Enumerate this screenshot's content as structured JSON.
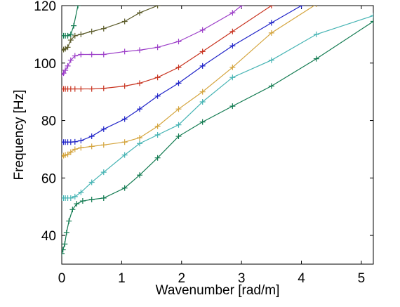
{
  "chart_data": {
    "type": "line",
    "title": "",
    "xlabel": "Wavenumber [rad/m]",
    "ylabel": "Frequency [Hz]",
    "xlim": [
      0,
      5.2
    ],
    "ylim": [
      30,
      120
    ],
    "xticks": [
      0,
      1,
      2,
      3,
      4,
      5
    ],
    "yticks": [
      40,
      60,
      80,
      100,
      120
    ],
    "grid": false,
    "legend": "none",
    "marker": "+",
    "series": [
      {
        "color": "#117a50",
        "points": [
          [
            0.0,
            33.7
          ],
          [
            0.02,
            35.0
          ],
          [
            0.05,
            37.0
          ],
          [
            0.08,
            41.0
          ],
          [
            0.12,
            45.0
          ],
          [
            0.18,
            49.0
          ],
          [
            0.25,
            51.0
          ],
          [
            0.35,
            52.0
          ],
          [
            0.5,
            52.5
          ],
          [
            0.7,
            53.0
          ],
          [
            1.05,
            56.5
          ],
          [
            1.3,
            61.0
          ],
          [
            1.6,
            67.0
          ],
          [
            1.95,
            74.5
          ],
          [
            2.35,
            79.5
          ],
          [
            2.85,
            85.0
          ],
          [
            3.5,
            92.0
          ],
          [
            4.25,
            101.5
          ],
          [
            5.2,
            114.5
          ]
        ]
      },
      {
        "color": "#46b4b4",
        "points": [
          [
            0.0,
            53.0
          ],
          [
            0.03,
            53.0
          ],
          [
            0.06,
            53.0
          ],
          [
            0.1,
            53.0
          ],
          [
            0.15,
            53.0
          ],
          [
            0.22,
            53.5
          ],
          [
            0.32,
            55.0
          ],
          [
            0.5,
            58.5
          ],
          [
            0.7,
            62.0
          ],
          [
            1.05,
            68.0
          ],
          [
            1.3,
            72.0
          ],
          [
            1.6,
            75.0
          ],
          [
            1.95,
            78.5
          ],
          [
            2.35,
            86.5
          ],
          [
            2.85,
            95.0
          ],
          [
            3.5,
            101.0
          ],
          [
            4.25,
            110.0
          ],
          [
            5.2,
            116.5
          ]
        ]
      },
      {
        "color": "#d4a43c",
        "points": [
          [
            0.0,
            67.5
          ],
          [
            0.03,
            67.8
          ],
          [
            0.06,
            68.0
          ],
          [
            0.1,
            68.2
          ],
          [
            0.15,
            69.0
          ],
          [
            0.22,
            70.0
          ],
          [
            0.32,
            70.5
          ],
          [
            0.5,
            71.0
          ],
          [
            0.7,
            71.5
          ],
          [
            1.05,
            72.5
          ],
          [
            1.3,
            74.0
          ],
          [
            1.6,
            78.0
          ],
          [
            1.95,
            84.0
          ],
          [
            2.35,
            90.0
          ],
          [
            2.85,
            98.5
          ],
          [
            3.5,
            110.5
          ],
          [
            4.25,
            120.5
          ]
        ]
      },
      {
        "color": "#1f23c8",
        "points": [
          [
            0.0,
            72.5
          ],
          [
            0.03,
            72.5
          ],
          [
            0.06,
            72.5
          ],
          [
            0.1,
            72.5
          ],
          [
            0.15,
            72.5
          ],
          [
            0.22,
            72.6
          ],
          [
            0.32,
            73.0
          ],
          [
            0.5,
            74.5
          ],
          [
            0.7,
            77.0
          ],
          [
            1.05,
            80.5
          ],
          [
            1.3,
            84.0
          ],
          [
            1.6,
            88.5
          ],
          [
            1.95,
            93.0
          ],
          [
            2.35,
            99.0
          ],
          [
            2.85,
            106.0
          ],
          [
            3.5,
            114.0
          ],
          [
            4.0,
            120.0
          ]
        ]
      },
      {
        "color": "#c8321e",
        "points": [
          [
            0.0,
            91.0
          ],
          [
            0.03,
            91.0
          ],
          [
            0.06,
            91.0
          ],
          [
            0.1,
            91.0
          ],
          [
            0.15,
            91.0
          ],
          [
            0.22,
            91.0
          ],
          [
            0.32,
            91.0
          ],
          [
            0.5,
            91.0
          ],
          [
            0.7,
            91.2
          ],
          [
            1.05,
            92.0
          ],
          [
            1.3,
            93.0
          ],
          [
            1.6,
            95.0
          ],
          [
            1.95,
            98.5
          ],
          [
            2.35,
            104.0
          ],
          [
            2.85,
            111.0
          ],
          [
            3.5,
            120.0
          ]
        ]
      },
      {
        "color": "#9b3cc8",
        "points": [
          [
            0.0,
            96.0
          ],
          [
            0.03,
            96.5
          ],
          [
            0.06,
            97.5
          ],
          [
            0.1,
            99.0
          ],
          [
            0.15,
            101.0
          ],
          [
            0.22,
            102.5
          ],
          [
            0.32,
            103.0
          ],
          [
            0.5,
            103.0
          ],
          [
            0.7,
            103.0
          ],
          [
            1.05,
            104.0
          ],
          [
            1.3,
            104.5
          ],
          [
            1.6,
            105.5
          ],
          [
            1.95,
            107.5
          ],
          [
            2.35,
            111.5
          ],
          [
            2.85,
            117.5
          ],
          [
            3.0,
            120.0
          ]
        ]
      },
      {
        "color": "#5a5a28",
        "points": [
          [
            0.0,
            104.5
          ],
          [
            0.03,
            104.7
          ],
          [
            0.06,
            105.0
          ],
          [
            0.1,
            105.5
          ],
          [
            0.15,
            108.0
          ],
          [
            0.22,
            109.5
          ],
          [
            0.32,
            110.0
          ],
          [
            0.5,
            111.0
          ],
          [
            0.7,
            112.0
          ],
          [
            1.05,
            114.5
          ],
          [
            1.3,
            117.5
          ],
          [
            1.6,
            120.0
          ]
        ]
      },
      {
        "color": "#117a50",
        "points": [
          [
            0.0,
            109.5
          ],
          [
            0.03,
            109.5
          ],
          [
            0.06,
            109.5
          ],
          [
            0.1,
            109.5
          ],
          [
            0.15,
            110.0
          ],
          [
            0.2,
            113.0
          ],
          [
            0.27,
            120.0
          ]
        ]
      }
    ]
  }
}
